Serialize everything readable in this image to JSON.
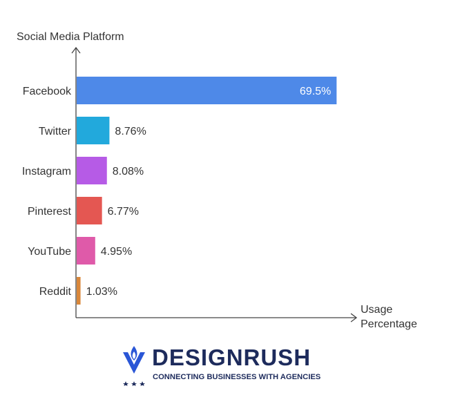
{
  "chart_data": {
    "type": "bar",
    "orientation": "horizontal",
    "ylabel": "Social Media Platform",
    "xlabel_lines": [
      "Usage",
      "Percentage"
    ],
    "categories": [
      "Facebook",
      "Twitter",
      "Instagram",
      "Pinterest",
      "YouTube",
      "Reddit"
    ],
    "values": [
      69.5,
      8.76,
      8.08,
      6.77,
      4.95,
      1.03
    ],
    "value_labels": [
      "69.5%",
      "8.76%",
      "8.08%",
      "6.77%",
      "4.95%",
      "1.03%"
    ],
    "colors": [
      "#4e89e8",
      "#22a9dc",
      "#b65be6",
      "#e45752",
      "#df5aa9",
      "#d9873a"
    ],
    "xlim": [
      0,
      70
    ],
    "grid": false
  },
  "branding": {
    "name": "DESIGNRUSH",
    "tagline": "CONNECTING BUSINESSES WITH AGENCIES",
    "icon": "designrush-flame-logo-icon",
    "color": "#1d2b5c"
  }
}
